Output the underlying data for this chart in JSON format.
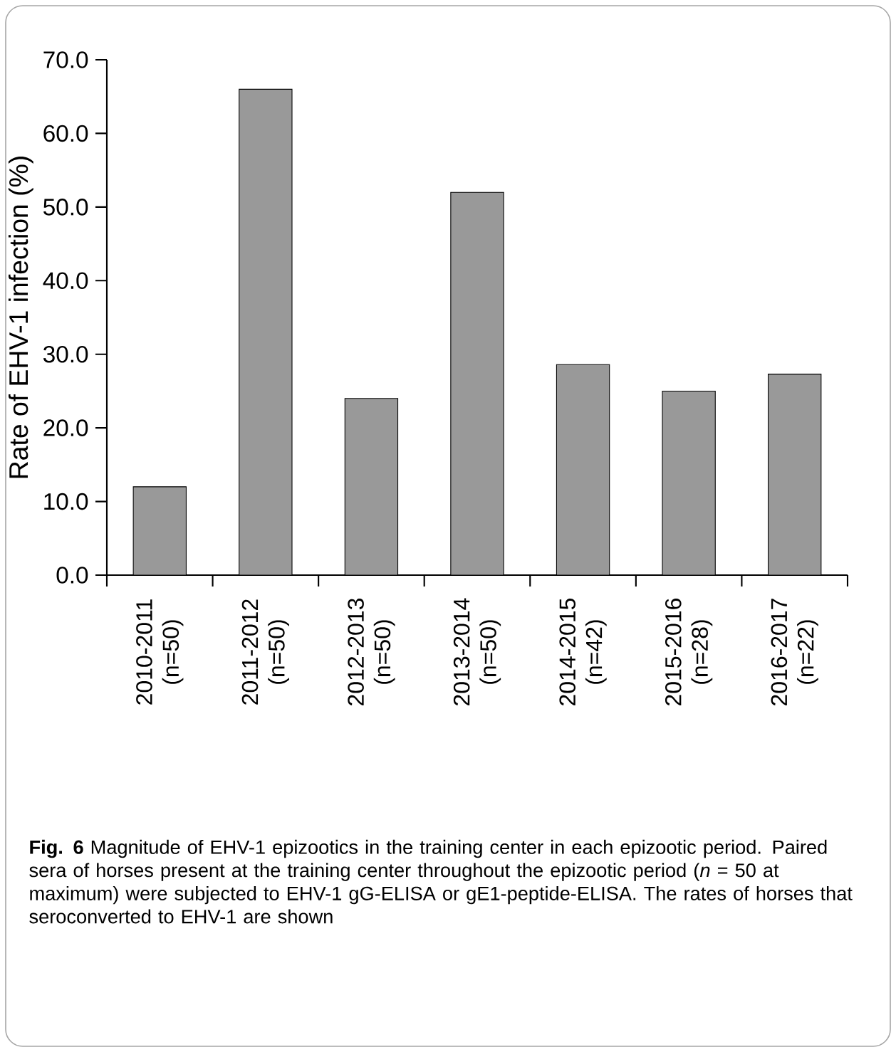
{
  "chart_data": {
    "type": "bar",
    "ylabel": "Rate of EHV-1 infection (%)",
    "categories": [
      "2010-2011 (n=50)",
      "2011-2012 (n=50)",
      "2012-2013 (n=50)",
      "2013-2014 (n=50)",
      "2014-2015 (n=42)",
      "2015-2016 (n=28)",
      "2016-2017 (n=22)"
    ],
    "values": [
      12.0,
      66.0,
      24.0,
      52.0,
      28.6,
      25.0,
      27.3
    ],
    "color": "#999999",
    "ylim": [
      0,
      70
    ],
    "yticks": [
      {
        "value": 0,
        "label": "0.0"
      },
      {
        "value": 10,
        "label": "10.0"
      },
      {
        "value": 20,
        "label": "20.0"
      },
      {
        "value": 30,
        "label": "30.0"
      },
      {
        "value": 40,
        "label": "40.0"
      },
      {
        "value": 50,
        "label": "50.0"
      },
      {
        "value": 60,
        "label": "60.0"
      },
      {
        "value": 70,
        "label": "70.0"
      }
    ],
    "grid": false,
    "annotations": [
      "**Fig. 6** Magnitude of EHV-1 epizootics in the training center in each epizootic period. Paired sera of horses present at the training center throughout the epizootic period (*n* = 50 at maximum) were subjected to EHV-1 gG-ELISA or gE1-peptide-ELISA. The rates of horses that seroconverted to EHV-1 are shown"
    ]
  }
}
